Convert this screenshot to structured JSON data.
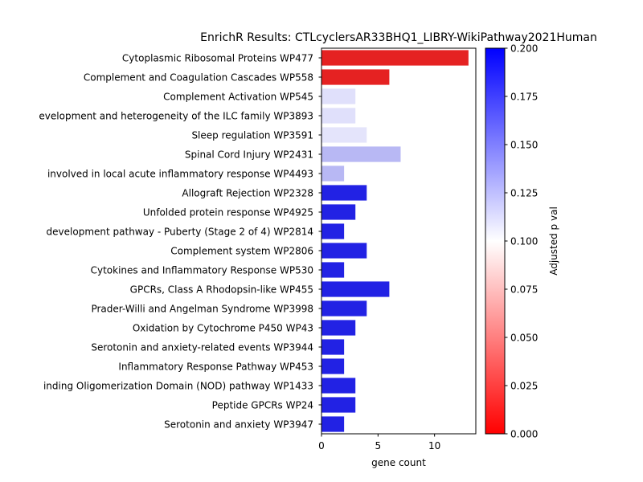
{
  "chart_data": {
    "type": "bar",
    "orientation": "horizontal",
    "title": "EnrichR Results: CTLcyclersAR33BHQ1_LIBRY-WikiPathway2021Human",
    "xlabel": "gene count",
    "ylabel": "",
    "xlim": [
      0,
      13.65
    ],
    "x_ticks": [
      0,
      5,
      10
    ],
    "categories": [
      "Cytoplasmic Ribosomal Proteins WP477",
      "Complement and Coagulation Cascades WP558",
      "Complement Activation WP545",
      "evelopment and heterogeneity of the ILC family WP3893",
      "Sleep regulation WP3591",
      "Spinal Cord Injury WP2431",
      " involved in local acute inflammatory response  WP4493",
      "Allograft Rejection WP2328",
      "Unfolded protein response WP4925",
      " development pathway - Puberty (Stage 2 of 4) WP2814",
      "Complement system WP2806",
      "Cytokines and Inflammatory Response WP530",
      "GPCRs, Class A Rhodopsin-like WP455",
      "Prader-Willi and Angelman Syndrome WP3998",
      "Oxidation by Cytochrome P450 WP43",
      "Serotonin and anxiety-related events WP3944",
      "Inflammatory Response Pathway WP453",
      "inding Oligomerization Domain (NOD) pathway WP1433",
      "Peptide GPCRs WP24",
      "Serotonin and anxiety WP3947"
    ],
    "values": [
      13,
      6,
      3,
      3,
      4,
      7,
      2,
      4,
      3,
      2,
      4,
      2,
      6,
      4,
      3,
      2,
      2,
      3,
      3,
      2
    ],
    "bar_colors": [
      "#e52222",
      "#e52222",
      "#e0e0fb",
      "#e0e0fb",
      "#e4e4fb",
      "#b8b8f4",
      "#b8b8f4",
      "#2222e4",
      "#2222e4",
      "#2222e4",
      "#2222e4",
      "#2222e4",
      "#2222e4",
      "#2222e4",
      "#2222e4",
      "#2222e4",
      "#2222e4",
      "#2222e4",
      "#2222e4",
      "#2222e4"
    ],
    "colorbar": {
      "label": "Adjusted p val",
      "range": [
        0.0,
        0.2
      ],
      "ticks": [
        "0.000",
        "0.025",
        "0.050",
        "0.075",
        "0.100",
        "0.125",
        "0.150",
        "0.175",
        "0.200"
      ],
      "colormap": [
        "#ff0000",
        "#ffffff",
        "#0000ff"
      ]
    },
    "grid": false,
    "legend": "none"
  }
}
